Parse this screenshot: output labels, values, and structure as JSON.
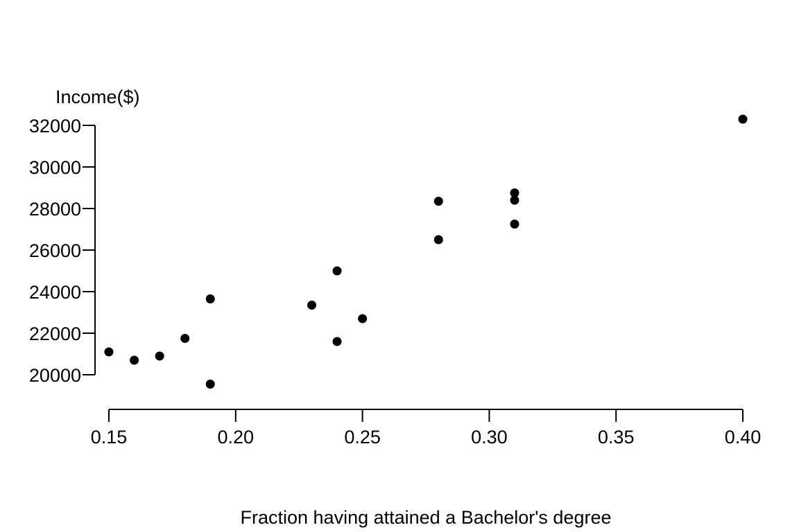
{
  "chart_data": {
    "type": "scatter",
    "title": "",
    "xlabel": "Fraction having attained a Bachelor's degree",
    "ylabel": "Income($)",
    "xlim": [
      0.15,
      0.4
    ],
    "ylim": [
      20000,
      32000
    ],
    "x_ticks": [
      "0.15",
      "0.20",
      "0.25",
      "0.30",
      "0.35",
      "0.40"
    ],
    "y_ticks": [
      "20000",
      "22000",
      "24000",
      "26000",
      "28000",
      "30000",
      "32000"
    ],
    "grid": false,
    "legend": "none",
    "marker_color": "#000000",
    "points": [
      {
        "x": 0.15,
        "y": 21100
      },
      {
        "x": 0.16,
        "y": 20700
      },
      {
        "x": 0.17,
        "y": 20900
      },
      {
        "x": 0.18,
        "y": 21750
      },
      {
        "x": 0.19,
        "y": 23650
      },
      {
        "x": 0.19,
        "y": 19550
      },
      {
        "x": 0.23,
        "y": 23350
      },
      {
        "x": 0.24,
        "y": 25000
      },
      {
        "x": 0.24,
        "y": 21600
      },
      {
        "x": 0.25,
        "y": 22700
      },
      {
        "x": 0.28,
        "y": 28350
      },
      {
        "x": 0.28,
        "y": 26500
      },
      {
        "x": 0.31,
        "y": 28750
      },
      {
        "x": 0.31,
        "y": 28400
      },
      {
        "x": 0.31,
        "y": 27250
      },
      {
        "x": 0.4,
        "y": 32300
      }
    ]
  }
}
